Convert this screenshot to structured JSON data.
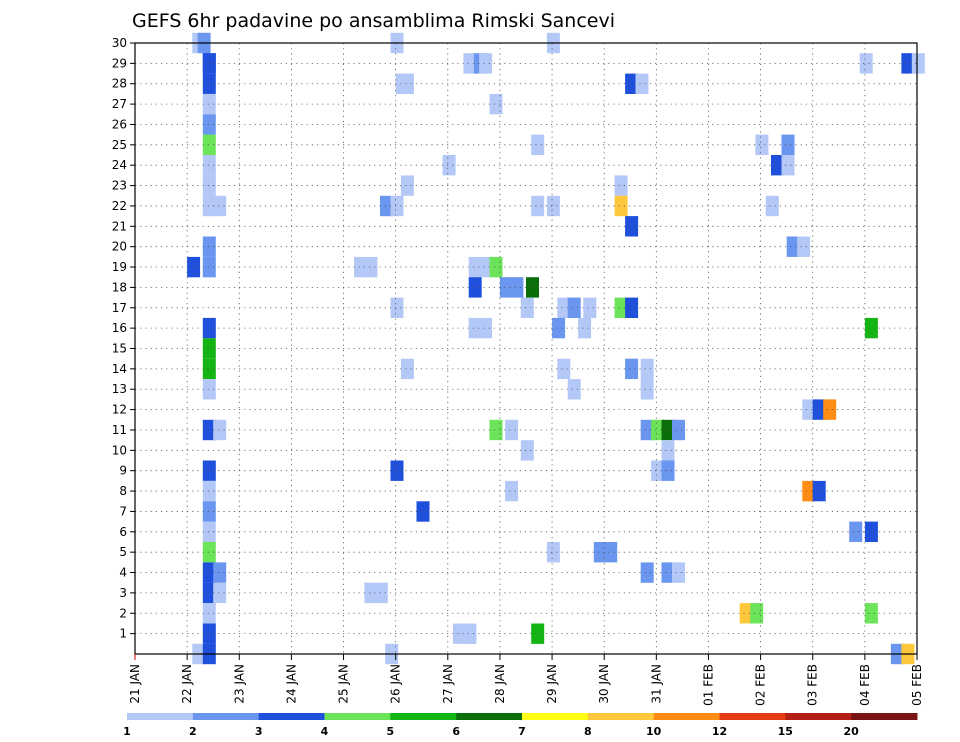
{
  "chart_data": {
    "type": "heatmap",
    "title": "GEFS 6hr padavine po ansamblima Rimski Sancevi",
    "xlabel": "",
    "ylabel": "",
    "x_ticks": [
      "21 JAN",
      "22 JAN",
      "23 JAN",
      "24 JAN",
      "25 JAN",
      "26 JAN",
      "27 JAN",
      "28 JAN",
      "29 JAN",
      "30 JAN",
      "31 JAN",
      "01 FEB",
      "02 FEB",
      "03 FEB",
      "04 FEB",
      "05 FEB"
    ],
    "y_ticks": [
      "1",
      "2",
      "3",
      "4",
      "5",
      "6",
      "7",
      "8",
      "9",
      "10",
      "11",
      "12",
      "13",
      "14",
      "15",
      "16",
      "17",
      "18",
      "19",
      "20",
      "21",
      "22",
      "23",
      "24",
      "25",
      "26",
      "27",
      "28",
      "29",
      "30"
    ],
    "xlim": [
      0,
      15
    ],
    "ylim": [
      0,
      30
    ],
    "x_unit": "days since 21 JAN 00Z (6-hourly steps)",
    "grid": true,
    "colorbar": {
      "colors": [
        "#b4c8f8",
        "#6a96f0",
        "#1e50dc",
        "#6ce45a",
        "#14b414",
        "#0a6e0a",
        "#ffff14",
        "#ffc83c",
        "#ff8c14",
        "#e63c14",
        "#b41e14",
        "#781414"
      ],
      "labels": [
        "1",
        "2",
        "3",
        "4",
        "5",
        "6",
        "7",
        "8",
        "10",
        "12",
        "15",
        "20"
      ]
    },
    "cells": [
      [
        1.1,
        30,
        1
      ],
      [
        1.2,
        30,
        2
      ],
      [
        4.9,
        30,
        1
      ],
      [
        7.9,
        30,
        1
      ],
      [
        1.3,
        29,
        3
      ],
      [
        1.3,
        29,
        3
      ],
      [
        6.3,
        29,
        1
      ],
      [
        6.5,
        29,
        2
      ],
      [
        6.6,
        29,
        1
      ],
      [
        13.9,
        29,
        1
      ],
      [
        14.7,
        29,
        3
      ],
      [
        14.9,
        29,
        1
      ],
      [
        1.3,
        28,
        3
      ],
      [
        5.0,
        28,
        1
      ],
      [
        5.1,
        28,
        1
      ],
      [
        9.4,
        28,
        3
      ],
      [
        9.6,
        28,
        1
      ],
      [
        1.3,
        27,
        1
      ],
      [
        6.8,
        27,
        1
      ],
      [
        1.3,
        26,
        2
      ],
      [
        1.3,
        25,
        4
      ],
      [
        7.6,
        25,
        1
      ],
      [
        11.9,
        25,
        1
      ],
      [
        12.4,
        25,
        2
      ],
      [
        1.3,
        24,
        1
      ],
      [
        5.9,
        24,
        1
      ],
      [
        12.2,
        24,
        3
      ],
      [
        12.4,
        24,
        1
      ],
      [
        1.3,
        23,
        1
      ],
      [
        5.1,
        23,
        1
      ],
      [
        9.2,
        23,
        1
      ],
      [
        1.3,
        22,
        1
      ],
      [
        1.5,
        22,
        1
      ],
      [
        4.7,
        22,
        2
      ],
      [
        4.9,
        22,
        1
      ],
      [
        7.6,
        22,
        1
      ],
      [
        7.9,
        22,
        1
      ],
      [
        9.2,
        22,
        8
      ],
      [
        12.1,
        22,
        1
      ],
      [
        9.4,
        21,
        3
      ],
      [
        1.3,
        20,
        2
      ],
      [
        12.5,
        20,
        2
      ],
      [
        12.7,
        20,
        1
      ],
      [
        1.0,
        19,
        3
      ],
      [
        1.3,
        19,
        2
      ],
      [
        4.2,
        19,
        1
      ],
      [
        4.4,
        19,
        1
      ],
      [
        6.4,
        19,
        1
      ],
      [
        6.6,
        19,
        1
      ],
      [
        6.8,
        19,
        4
      ],
      [
        6.4,
        18,
        3
      ],
      [
        7.0,
        18,
        2
      ],
      [
        7.2,
        18,
        2
      ],
      [
        7.5,
        18,
        6
      ],
      [
        7.4,
        17,
        1
      ],
      [
        8.1,
        17,
        1
      ],
      [
        8.3,
        17,
        2
      ],
      [
        8.6,
        17,
        1
      ],
      [
        9.2,
        17,
        4
      ],
      [
        9.4,
        17,
        3
      ],
      [
        4.9,
        17,
        1
      ],
      [
        1.3,
        16,
        3
      ],
      [
        6.4,
        16,
        1
      ],
      [
        6.6,
        16,
        1
      ],
      [
        8.0,
        16,
        2
      ],
      [
        8.5,
        16,
        1
      ],
      [
        14.0,
        16,
        5
      ],
      [
        1.3,
        15,
        5
      ],
      [
        5.1,
        14,
        1
      ],
      [
        8.1,
        14,
        1
      ],
      [
        9.4,
        14,
        2
      ],
      [
        9.7,
        14,
        1
      ],
      [
        1.3,
        14,
        5
      ],
      [
        8.3,
        13,
        1
      ],
      [
        9.7,
        13,
        1
      ],
      [
        1.3,
        13,
        1
      ],
      [
        12.8,
        12,
        1
      ],
      [
        13.0,
        12,
        3
      ],
      [
        13.2,
        12,
        9
      ],
      [
        1.3,
        11,
        3
      ],
      [
        1.5,
        11,
        1
      ],
      [
        6.8,
        11,
        4
      ],
      [
        7.1,
        11,
        1
      ],
      [
        9.7,
        11,
        2
      ],
      [
        9.9,
        11,
        4
      ],
      [
        10.1,
        11,
        6
      ],
      [
        10.3,
        11,
        2
      ],
      [
        7.4,
        10,
        1
      ],
      [
        10.1,
        10,
        1
      ],
      [
        1.3,
        9,
        3
      ],
      [
        4.9,
        9,
        3
      ],
      [
        9.9,
        9,
        1
      ],
      [
        10.1,
        9,
        2
      ],
      [
        1.3,
        8,
        1
      ],
      [
        7.1,
        8,
        1
      ],
      [
        12.8,
        8,
        9
      ],
      [
        13.0,
        8,
        3
      ],
      [
        1.3,
        7,
        2
      ],
      [
        5.4,
        7,
        3
      ],
      [
        1.3,
        6,
        1
      ],
      [
        13.7,
        6,
        2
      ],
      [
        14.0,
        6,
        3
      ],
      [
        1.3,
        5,
        4
      ],
      [
        7.9,
        5,
        1
      ],
      [
        8.8,
        5,
        2
      ],
      [
        9.0,
        5,
        2
      ],
      [
        1.3,
        4,
        3
      ],
      [
        1.5,
        4,
        2
      ],
      [
        9.7,
        4,
        2
      ],
      [
        10.1,
        4,
        2
      ],
      [
        10.3,
        4,
        1
      ],
      [
        1.3,
        3,
        3
      ],
      [
        1.5,
        3,
        1
      ],
      [
        4.4,
        3,
        1
      ],
      [
        4.6,
        3,
        1
      ],
      [
        1.3,
        2,
        1
      ],
      [
        11.6,
        2,
        8
      ],
      [
        11.8,
        2,
        4
      ],
      [
        14.0,
        2,
        4
      ],
      [
        1.3,
        1,
        3
      ],
      [
        6.1,
        1,
        1
      ],
      [
        6.3,
        1,
        1
      ],
      [
        7.6,
        1,
        5
      ],
      [
        1.1,
        0,
        1
      ],
      [
        1.3,
        0,
        3
      ],
      [
        4.8,
        0,
        1
      ],
      [
        14.5,
        0,
        2
      ],
      [
        14.7,
        0,
        8
      ]
    ]
  }
}
